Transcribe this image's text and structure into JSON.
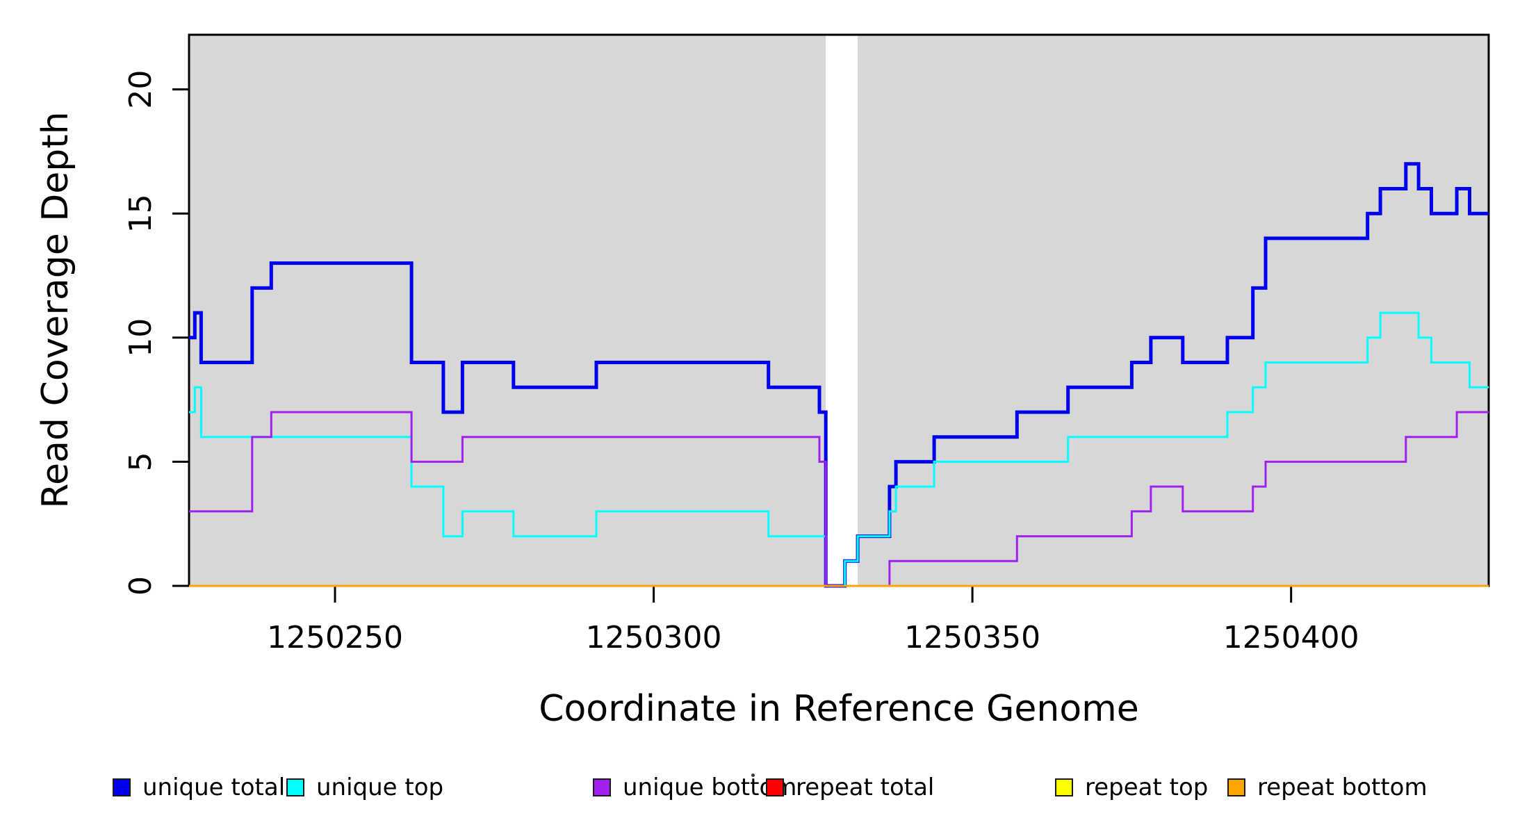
{
  "ui": {
    "xlabel": "Coordinate in Reference Genome",
    "ylabel": "Read Coverage Depth"
  },
  "legend": {
    "items": [
      {
        "label": "unique total",
        "color": "#0000EE",
        "x": 162
      },
      {
        "label": "unique top",
        "color": "#00FFFF",
        "x": 412
      },
      {
        "label": "unique bottom",
        "color": "#A020F0",
        "x": 853
      },
      {
        "label": "repeat total",
        "color": "#FF0000",
        "x": 1102
      },
      {
        "label": "repeat top",
        "color": "#FFFF00",
        "x": 1518
      },
      {
        "label": "repeat bottom",
        "color": "#FFA500",
        "x": 1766
      }
    ]
  },
  "chart_data": {
    "type": "line",
    "subtype": "step-coverage",
    "title": "",
    "xlabel": "Coordinate in Reference Genome",
    "ylabel": "Read Coverage Depth",
    "x_domain": [
      1250227.1,
      1250431.0
    ],
    "y_domain": [
      0,
      22.2
    ],
    "x_ticks": [
      1250250,
      1250300,
      1250350,
      1250400
    ],
    "y_ticks": [
      0,
      5,
      10,
      15,
      20
    ],
    "grid": false,
    "plot_background": "#D7D7D7",
    "gap_region": {
      "x_start": 1250327,
      "x_end": 1250332,
      "color": "#FFFFFF"
    },
    "legend_position": "bottom-horizontal",
    "series": [
      {
        "name": "unique total",
        "color": "#0000EE",
        "line_width": 5,
        "points": [
          [
            1250227,
            10
          ],
          [
            1250228,
            11
          ],
          [
            1250229,
            9
          ],
          [
            1250237,
            12
          ],
          [
            1250240,
            13
          ],
          [
            1250262,
            9
          ],
          [
            1250267,
            7
          ],
          [
            1250270,
            9
          ],
          [
            1250278,
            8
          ],
          [
            1250291,
            9
          ],
          [
            1250318,
            8
          ],
          [
            1250326,
            7
          ],
          [
            1250327,
            0
          ],
          [
            1250330,
            1
          ],
          [
            1250332,
            2
          ],
          [
            1250337,
            4
          ],
          [
            1250338,
            5
          ],
          [
            1250344,
            6
          ],
          [
            1250357,
            7
          ],
          [
            1250365,
            8
          ],
          [
            1250375,
            9
          ],
          [
            1250378,
            10
          ],
          [
            1250383,
            9
          ],
          [
            1250390,
            10
          ],
          [
            1250394,
            12
          ],
          [
            1250396,
            14
          ],
          [
            1250412,
            15
          ],
          [
            1250414,
            16
          ],
          [
            1250418,
            17
          ],
          [
            1250420,
            16
          ],
          [
            1250422,
            15
          ],
          [
            1250426,
            16
          ],
          [
            1250428,
            15
          ]
        ]
      },
      {
        "name": "unique top",
        "color": "#00FFFF",
        "line_width": 3,
        "points": [
          [
            1250227,
            7
          ],
          [
            1250228,
            8
          ],
          [
            1250229,
            6
          ],
          [
            1250262,
            4
          ],
          [
            1250267,
            2
          ],
          [
            1250270,
            3
          ],
          [
            1250278,
            2
          ],
          [
            1250291,
            3
          ],
          [
            1250318,
            2
          ],
          [
            1250327,
            0
          ],
          [
            1250330,
            1
          ],
          [
            1250332,
            2
          ],
          [
            1250337,
            3
          ],
          [
            1250338,
            4
          ],
          [
            1250344,
            5
          ],
          [
            1250365,
            6
          ],
          [
            1250390,
            7
          ],
          [
            1250394,
            8
          ],
          [
            1250396,
            9
          ],
          [
            1250412,
            10
          ],
          [
            1250414,
            11
          ],
          [
            1250420,
            10
          ],
          [
            1250422,
            9
          ],
          [
            1250428,
            8
          ]
        ]
      },
      {
        "name": "unique bottom",
        "color": "#A020F0",
        "line_width": 3,
        "points": [
          [
            1250227,
            3
          ],
          [
            1250237,
            6
          ],
          [
            1250240,
            7
          ],
          [
            1250262,
            5
          ],
          [
            1250270,
            6
          ],
          [
            1250326,
            5
          ],
          [
            1250327,
            0
          ],
          [
            1250337,
            1
          ],
          [
            1250357,
            2
          ],
          [
            1250375,
            3
          ],
          [
            1250378,
            4
          ],
          [
            1250383,
            3
          ],
          [
            1250394,
            4
          ],
          [
            1250396,
            5
          ],
          [
            1250418,
            6
          ],
          [
            1250426,
            7
          ]
        ]
      },
      {
        "name": "repeat total",
        "color": "#FF0000",
        "line_width": 3,
        "points": [
          [
            1250227,
            0
          ]
        ]
      },
      {
        "name": "repeat top",
        "color": "#FFFF00",
        "line_width": 3,
        "points": [
          [
            1250227,
            0
          ]
        ]
      },
      {
        "name": "repeat bottom",
        "color": "#FFA500",
        "line_width": 3,
        "points": [
          [
            1250227,
            0
          ]
        ]
      }
    ]
  }
}
